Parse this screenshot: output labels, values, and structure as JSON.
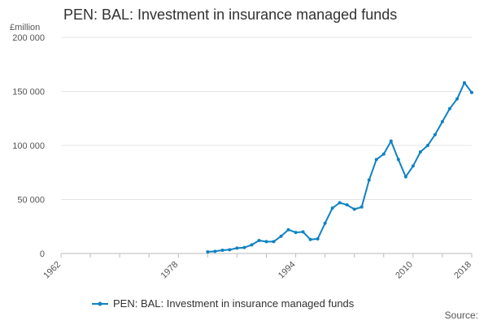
{
  "chart_data": {
    "type": "line",
    "title": "PEN: BAL: Investment in insurance managed funds",
    "ylabel": "£million",
    "xlabel": "",
    "x_ticks": [
      "1962",
      "1978",
      "1994",
      "2010",
      "2018"
    ],
    "y_ticks": [
      "0",
      "50 000",
      "100 000",
      "150 000",
      "200 000"
    ],
    "ylim": [
      0,
      200000
    ],
    "xlim": [
      1962,
      2018
    ],
    "grid": "horizontal",
    "legend_position": "bottom",
    "source_label": "Source:",
    "colors": {
      "series": "#0f82c2",
      "grid": "#e4e4e4",
      "axis": "#bbbbbb"
    },
    "series": [
      {
        "name": "PEN: BAL: Investment in insurance managed funds",
        "x": [
          1982,
          1983,
          1984,
          1985,
          1986,
          1987,
          1988,
          1989,
          1990,
          1991,
          1992,
          1993,
          1994,
          1995,
          1996,
          1997,
          1998,
          1999,
          2000,
          2001,
          2002,
          2003,
          2004,
          2005,
          2006,
          2007,
          2008,
          2009,
          2010,
          2011,
          2012,
          2013,
          2014,
          2015,
          2016,
          2017,
          2018
        ],
        "values": [
          1500,
          2000,
          3000,
          3500,
          5000,
          5500,
          8000,
          12000,
          11000,
          11000,
          16000,
          22000,
          19500,
          20000,
          13000,
          13500,
          28000,
          42000,
          47000,
          45000,
          41000,
          43000,
          68000,
          87000,
          92000,
          104000,
          87000,
          71000,
          81000,
          94000,
          100000,
          110000,
          122000,
          134000,
          143000,
          158000,
          149000
        ]
      }
    ]
  }
}
